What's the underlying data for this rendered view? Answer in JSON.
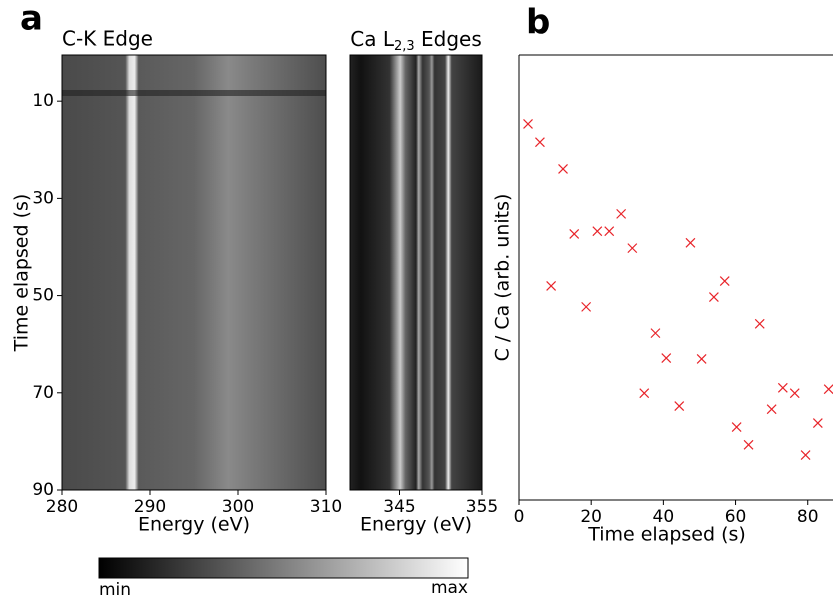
{
  "chart_data": [
    {
      "type": "heatmap",
      "panel_label": "a",
      "title": "C-K Edge",
      "xlabel": "Energy (eV)",
      "ylabel": "Time elapsed (s)",
      "xlim": [
        280,
        310
      ],
      "xticks": [
        280,
        290,
        300,
        310
      ],
      "ylim": [
        0.5,
        90
      ],
      "yticks": [
        10,
        30,
        50,
        70,
        90
      ],
      "y_inverted": true,
      "colormap": "gray"
    },
    {
      "type": "heatmap",
      "title": [
        "Ca L",
        "2,3",
        " Edges"
      ],
      "xlabel": "Energy (eV)",
      "xlim": [
        339,
        355
      ],
      "xticks": [
        345,
        355
      ],
      "ylim": [
        0.5,
        90
      ],
      "y_inverted": true,
      "colormap": "gray"
    },
    {
      "type": "scatter",
      "panel_label": "b",
      "xlabel": "Time elapsed (s)",
      "ylabel": "C / Ca (arb. units)",
      "xlim": [
        0,
        87
      ],
      "xticks": [
        0,
        20,
        40,
        60,
        80
      ],
      "ylim": [
        0,
        1
      ],
      "marker": "x",
      "color": "#e8242a",
      "x": [
        2.5,
        5.8,
        8.9,
        12.2,
        15.3,
        18.6,
        21.7,
        25.0,
        28.3,
        31.4,
        34.7,
        37.8,
        40.8,
        44.4,
        47.5,
        50.6,
        54.0,
        57.0,
        60.3,
        63.6,
        66.7,
        70.0,
        73.1,
        76.4,
        79.4,
        82.8,
        85.8
      ],
      "values": [
        0.845,
        0.804,
        0.481,
        0.744,
        0.598,
        0.434,
        0.604,
        0.604,
        0.643,
        0.566,
        0.24,
        0.375,
        0.319,
        0.211,
        0.578,
        0.317,
        0.456,
        0.492,
        0.164,
        0.124,
        0.396,
        0.204,
        0.252,
        0.24,
        0.101,
        0.173,
        0.249
      ]
    }
  ],
  "colorbar": {
    "labels": [
      "min",
      "max"
    ]
  }
}
